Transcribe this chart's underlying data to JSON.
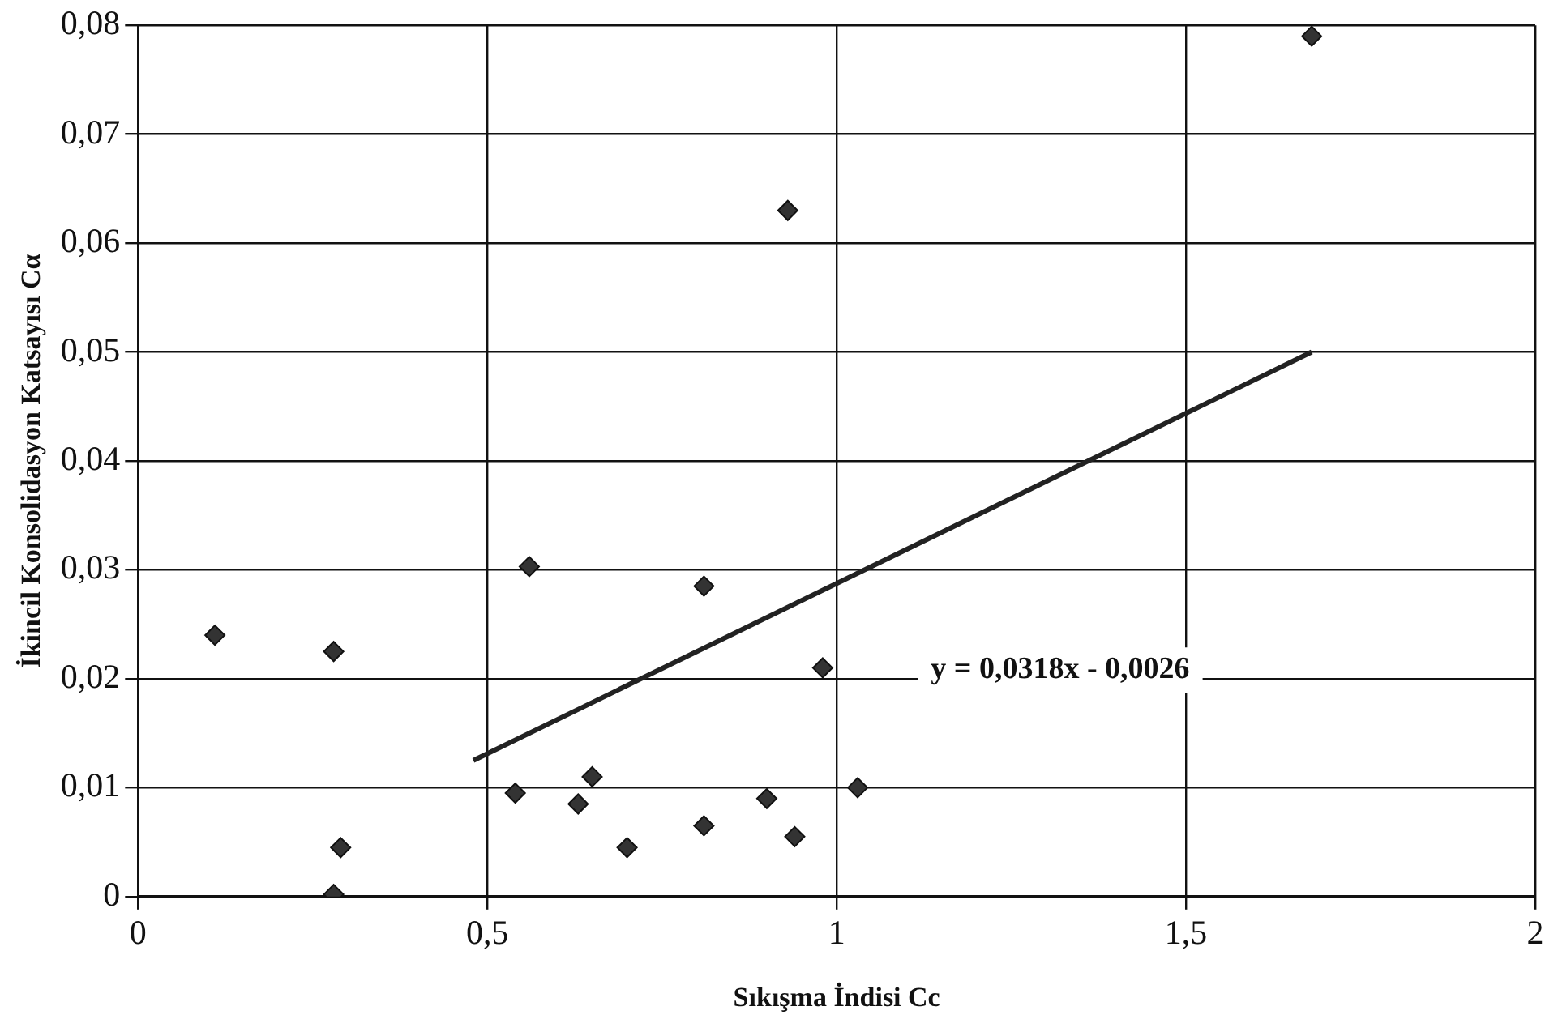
{
  "chart_data": {
    "type": "scatter",
    "xlabel": "Sıkışma İndisi Cc",
    "ylabel": "İkincil Konsolidasyon Katsayısı Cα",
    "xlim": [
      0,
      2
    ],
    "xticks": [
      0,
      {
        "value": 0.5,
        "label": "0,5"
      },
      1,
      {
        "value": 1.5,
        "label": "1,5"
      },
      2
    ],
    "ylim": [
      0,
      0.08
    ],
    "yticks": [
      0,
      {
        "value": 0.01,
        "label": "0,01"
      },
      {
        "value": 0.02,
        "label": "0,02"
      },
      {
        "value": 0.03,
        "label": "0,03"
      },
      {
        "value": 0.04,
        "label": "0,04"
      },
      {
        "value": 0.05,
        "label": "0,05"
      },
      {
        "value": 0.06,
        "label": "0,06"
      },
      {
        "value": 0.07,
        "label": "0,07"
      },
      {
        "value": 0.08,
        "label": "0,08"
      }
    ],
    "grid": true,
    "marker": "diamond",
    "annotations": [
      "y = 0,0318x - 0,0026"
    ],
    "series": [
      {
        "color": "#333333",
        "x": [
          0.11,
          0.28,
          0.28,
          0.29,
          0.54,
          0.56,
          0.63,
          0.65,
          0.7,
          0.81,
          0.81,
          0.9,
          0.93,
          0.94,
          0.98,
          1.03,
          1.68
        ],
        "values": [
          0.024,
          0.0225,
          0.0002,
          0.0045,
          0.0095,
          0.0303,
          0.0085,
          0.011,
          0.0045,
          0.0285,
          0.0065,
          0.009,
          0.063,
          0.0055,
          0.021,
          0.01,
          0.079
        ]
      },
      {
        "type": "line",
        "marker": "none",
        "color": "#222222",
        "x": [
          0.48,
          1.68
        ],
        "values": [
          0.0125,
          0.05
        ]
      }
    ]
  }
}
